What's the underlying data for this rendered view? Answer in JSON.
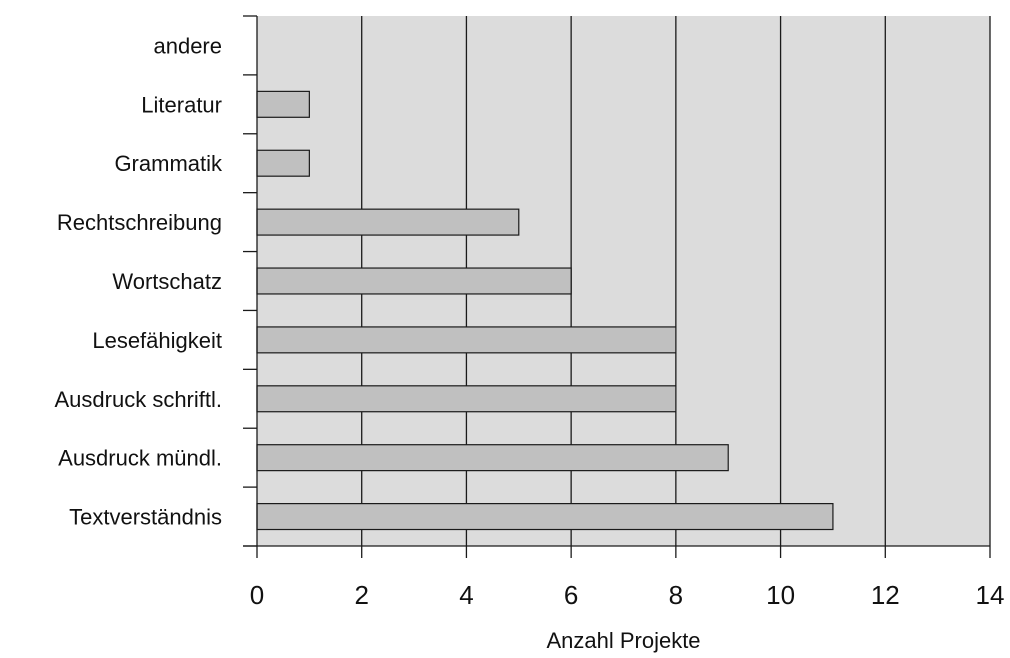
{
  "chart_data": {
    "type": "bar",
    "orientation": "horizontal",
    "categories": [
      "andere",
      "Literatur",
      "Grammatik",
      "Rechtschreibung",
      "Wortschatz",
      "Lesefähigkeit",
      "Ausdruck schriftl.",
      "Ausdruck mündl.",
      "Textverständnis"
    ],
    "values": [
      0,
      1,
      1,
      5,
      6,
      8,
      8,
      9,
      11
    ],
    "xlabel": "Anzahl Projekte",
    "ylabel": "",
    "title": "",
    "xlim": [
      0,
      14
    ],
    "xticks": [
      "0",
      "2",
      "4",
      "6",
      "8",
      "10",
      "12",
      "14"
    ],
    "grid": "vertical",
    "legend": "none",
    "colors": {
      "plot_background": "#dcdcdc",
      "bar_fill": "#c0c0c0",
      "bar_stroke": "#1a1a1a",
      "gridline": "#1a1a1a",
      "axis": "#1a1a1a"
    }
  }
}
